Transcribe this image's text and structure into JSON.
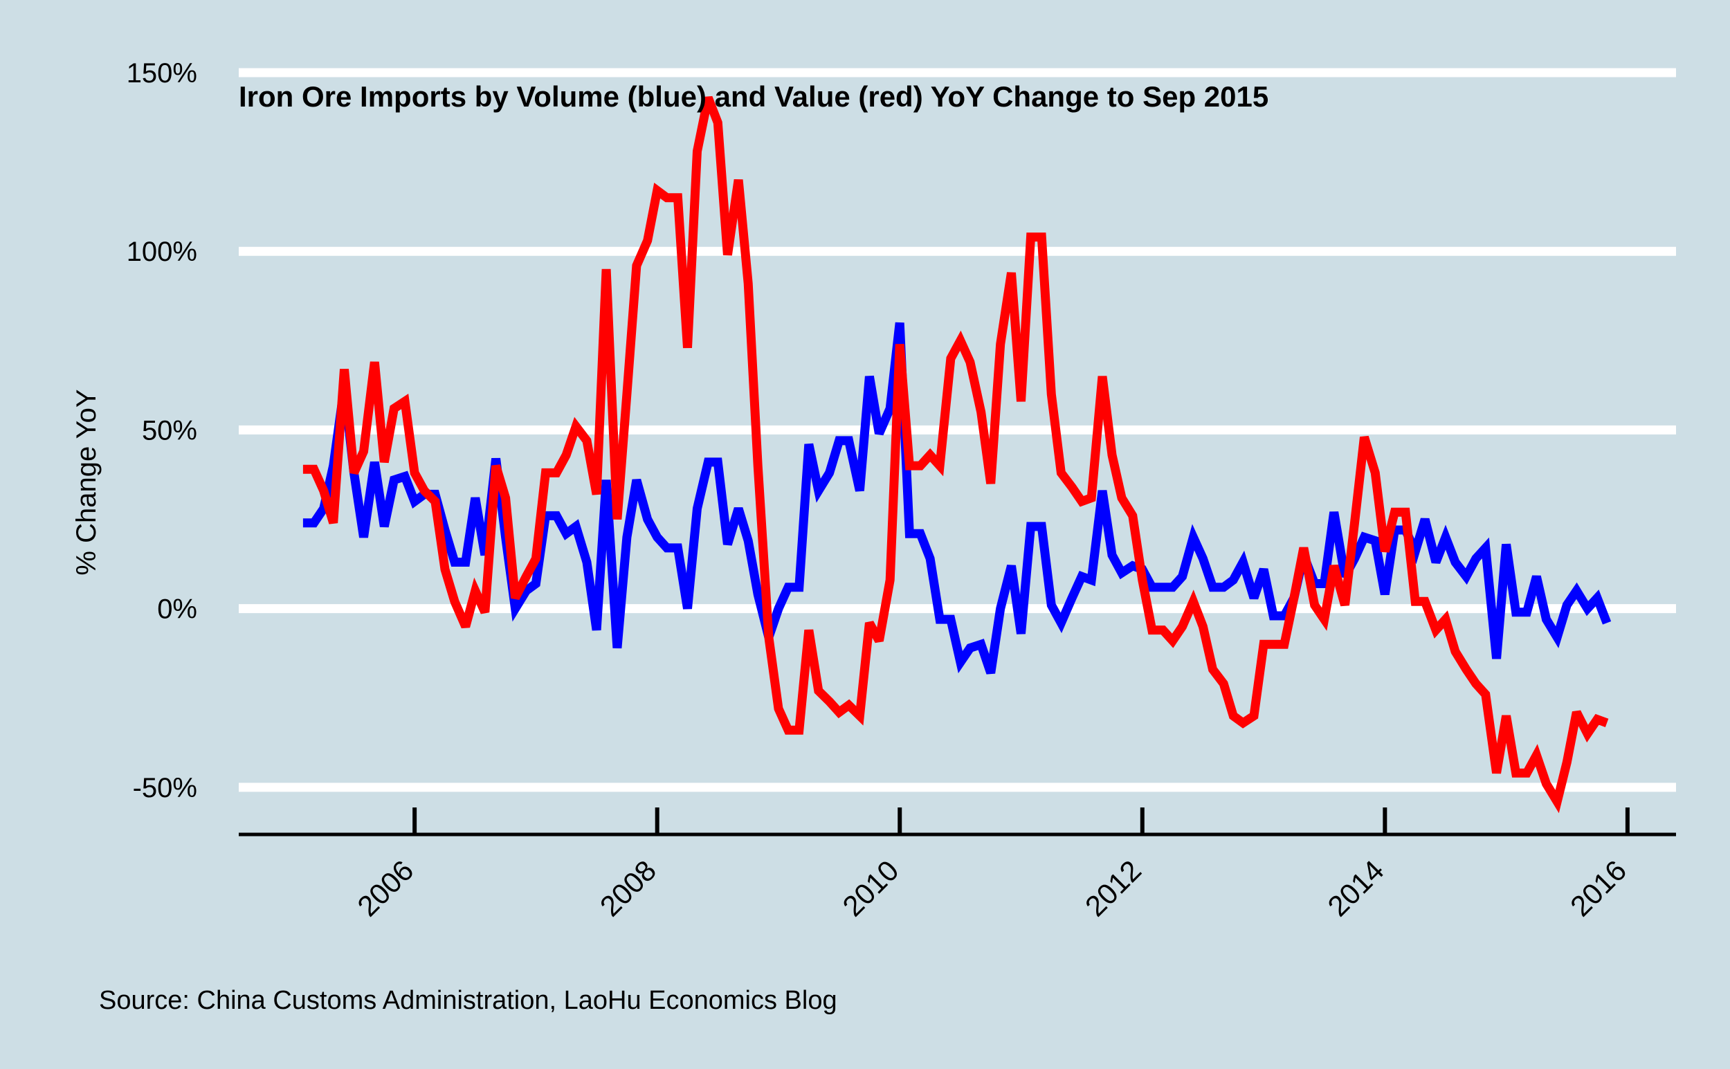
{
  "chart_data": {
    "type": "line",
    "title": "Iron Ore Imports by Volume (blue) and Value (red) YoY Change to Sep 2015",
    "ylabel": "% Change YoY",
    "xlabel": "",
    "caption": "Source: China Customs Administration, LaoHu Economics Blog",
    "ylim": [
      -63,
      150
    ],
    "xlim": [
      2004.55,
      2016.4
    ],
    "y_ticks": [
      -50,
      0,
      50,
      100,
      150
    ],
    "y_tick_labels": [
      "-50%",
      "0%",
      "50%",
      "100%",
      "150%"
    ],
    "x_ticks": [
      2006,
      2008,
      2010,
      2012,
      2014,
      2016
    ],
    "x_tick_labels": [
      "2006",
      "2008",
      "2010",
      "2012",
      "2014",
      "2016"
    ],
    "grid": "horizontal",
    "legend": "none",
    "series": [
      {
        "color": "#0000FF",
        "points": [
          [
            2005.08,
            24
          ],
          [
            2005.17,
            24
          ],
          [
            2005.25,
            28
          ],
          [
            2005.33,
            40
          ],
          [
            2005.42,
            62
          ],
          [
            2005.5,
            38
          ],
          [
            2005.58,
            20
          ],
          [
            2005.67,
            41
          ],
          [
            2005.75,
            23
          ],
          [
            2005.83,
            36
          ],
          [
            2005.92,
            37
          ],
          [
            2006.0,
            30
          ],
          [
            2006.08,
            32
          ],
          [
            2006.17,
            32
          ],
          [
            2006.25,
            22
          ],
          [
            2006.33,
            13
          ],
          [
            2006.42,
            13
          ],
          [
            2006.5,
            31
          ],
          [
            2006.58,
            15
          ],
          [
            2006.67,
            42
          ],
          [
            2006.75,
            20
          ],
          [
            2006.83,
            0
          ],
          [
            2006.92,
            5
          ],
          [
            2007.0,
            7
          ],
          [
            2007.08,
            26
          ],
          [
            2007.17,
            26
          ],
          [
            2007.25,
            21
          ],
          [
            2007.33,
            23
          ],
          [
            2007.42,
            13
          ],
          [
            2007.5,
            -6
          ],
          [
            2007.58,
            36
          ],
          [
            2007.67,
            -11
          ],
          [
            2007.75,
            20
          ],
          [
            2007.83,
            36
          ],
          [
            2007.92,
            25
          ],
          [
            2008.0,
            20
          ],
          [
            2008.08,
            17
          ],
          [
            2008.17,
            17
          ],
          [
            2008.25,
            0
          ],
          [
            2008.33,
            28
          ],
          [
            2008.42,
            41
          ],
          [
            2008.5,
            41
          ],
          [
            2008.58,
            18
          ],
          [
            2008.67,
            28
          ],
          [
            2008.75,
            19
          ],
          [
            2008.83,
            4
          ],
          [
            2008.92,
            -8
          ],
          [
            2009.0,
            0
          ],
          [
            2009.08,
            6
          ],
          [
            2009.17,
            6
          ],
          [
            2009.25,
            46
          ],
          [
            2009.33,
            33
          ],
          [
            2009.42,
            38
          ],
          [
            2009.5,
            47
          ],
          [
            2009.58,
            47
          ],
          [
            2009.67,
            33
          ],
          [
            2009.75,
            65
          ],
          [
            2009.83,
            49
          ],
          [
            2009.92,
            56
          ],
          [
            2010.0,
            80
          ],
          [
            2010.08,
            21
          ],
          [
            2010.17,
            21
          ],
          [
            2010.25,
            14
          ],
          [
            2010.33,
            -3
          ],
          [
            2010.42,
            -3
          ],
          [
            2010.5,
            -15
          ],
          [
            2010.58,
            -11
          ],
          [
            2010.67,
            -10
          ],
          [
            2010.75,
            -18
          ],
          [
            2010.83,
            0
          ],
          [
            2010.92,
            12
          ],
          [
            2011.0,
            -7
          ],
          [
            2011.08,
            23
          ],
          [
            2011.17,
            23
          ],
          [
            2011.25,
            1
          ],
          [
            2011.33,
            -4
          ],
          [
            2011.42,
            3
          ],
          [
            2011.5,
            9
          ],
          [
            2011.58,
            8
          ],
          [
            2011.67,
            33
          ],
          [
            2011.75,
            15
          ],
          [
            2011.83,
            10
          ],
          [
            2011.92,
            12
          ],
          [
            2012.0,
            11
          ],
          [
            2012.08,
            6
          ],
          [
            2012.17,
            6
          ],
          [
            2012.25,
            6
          ],
          [
            2012.33,
            9
          ],
          [
            2012.42,
            20
          ],
          [
            2012.5,
            14
          ],
          [
            2012.58,
            6
          ],
          [
            2012.67,
            6
          ],
          [
            2012.75,
            8
          ],
          [
            2012.83,
            13
          ],
          [
            2012.92,
            3
          ],
          [
            2013.0,
            11
          ],
          [
            2013.08,
            -2
          ],
          [
            2013.17,
            -2
          ],
          [
            2013.25,
            3
          ],
          [
            2013.33,
            15
          ],
          [
            2013.42,
            7
          ],
          [
            2013.5,
            7
          ],
          [
            2013.58,
            27
          ],
          [
            2013.67,
            9
          ],
          [
            2013.75,
            14
          ],
          [
            2013.83,
            20
          ],
          [
            2013.92,
            19
          ],
          [
            2014.0,
            4
          ],
          [
            2014.08,
            22
          ],
          [
            2014.17,
            22
          ],
          [
            2014.25,
            16
          ],
          [
            2014.33,
            25
          ],
          [
            2014.42,
            13
          ],
          [
            2014.5,
            20
          ],
          [
            2014.58,
            13
          ],
          [
            2014.67,
            9
          ],
          [
            2014.75,
            14
          ],
          [
            2014.83,
            17
          ],
          [
            2014.92,
            -14
          ],
          [
            2015.0,
            18
          ],
          [
            2015.08,
            -1
          ],
          [
            2015.17,
            -1
          ],
          [
            2015.25,
            9
          ],
          [
            2015.33,
            -3
          ],
          [
            2015.42,
            -8
          ],
          [
            2015.5,
            1
          ],
          [
            2015.58,
            5
          ],
          [
            2015.67,
            0
          ],
          [
            2015.75,
            3
          ],
          [
            2015.83,
            -4
          ]
        ]
      },
      {
        "color": "#FF0000",
        "points": [
          [
            2005.08,
            39
          ],
          [
            2005.17,
            39
          ],
          [
            2005.25,
            33
          ],
          [
            2005.33,
            24
          ],
          [
            2005.42,
            67
          ],
          [
            2005.5,
            38
          ],
          [
            2005.58,
            44
          ],
          [
            2005.67,
            69
          ],
          [
            2005.75,
            41
          ],
          [
            2005.83,
            56
          ],
          [
            2005.92,
            58
          ],
          [
            2006.0,
            38
          ],
          [
            2006.08,
            33
          ],
          [
            2006.17,
            30
          ],
          [
            2006.25,
            11
          ],
          [
            2006.33,
            2
          ],
          [
            2006.42,
            -5
          ],
          [
            2006.5,
            5
          ],
          [
            2006.58,
            -1
          ],
          [
            2006.67,
            40
          ],
          [
            2006.75,
            31
          ],
          [
            2006.83,
            3
          ],
          [
            2006.92,
            9
          ],
          [
            2007.0,
            14
          ],
          [
            2007.08,
            38
          ],
          [
            2007.17,
            38
          ],
          [
            2007.25,
            43
          ],
          [
            2007.33,
            51
          ],
          [
            2007.42,
            47
          ],
          [
            2007.5,
            32
          ],
          [
            2007.58,
            95
          ],
          [
            2007.67,
            25
          ],
          [
            2007.75,
            60
          ],
          [
            2007.83,
            96
          ],
          [
            2007.92,
            103
          ],
          [
            2008.0,
            117
          ],
          [
            2008.08,
            115
          ],
          [
            2008.17,
            115
          ],
          [
            2008.25,
            73
          ],
          [
            2008.33,
            128
          ],
          [
            2008.42,
            143
          ],
          [
            2008.5,
            136
          ],
          [
            2008.58,
            99
          ],
          [
            2008.67,
            120
          ],
          [
            2008.75,
            91
          ],
          [
            2008.83,
            40
          ],
          [
            2008.92,
            -8
          ],
          [
            2009.0,
            -28
          ],
          [
            2009.08,
            -34
          ],
          [
            2009.17,
            -34
          ],
          [
            2009.25,
            -6
          ],
          [
            2009.33,
            -23
          ],
          [
            2009.42,
            -26
          ],
          [
            2009.5,
            -29
          ],
          [
            2009.58,
            -27
          ],
          [
            2009.67,
            -30
          ],
          [
            2009.75,
            -4
          ],
          [
            2009.83,
            -9
          ],
          [
            2009.92,
            8
          ],
          [
            2010.0,
            74
          ],
          [
            2010.08,
            40
          ],
          [
            2010.17,
            40
          ],
          [
            2010.25,
            43
          ],
          [
            2010.33,
            40
          ],
          [
            2010.42,
            70
          ],
          [
            2010.5,
            75
          ],
          [
            2010.58,
            69
          ],
          [
            2010.67,
            55
          ],
          [
            2010.75,
            35
          ],
          [
            2010.83,
            74
          ],
          [
            2010.92,
            94
          ],
          [
            2011.0,
            58
          ],
          [
            2011.08,
            104
          ],
          [
            2011.17,
            104
          ],
          [
            2011.25,
            60
          ],
          [
            2011.33,
            38
          ],
          [
            2011.42,
            34
          ],
          [
            2011.5,
            30
          ],
          [
            2011.58,
            31
          ],
          [
            2011.67,
            65
          ],
          [
            2011.75,
            43
          ],
          [
            2011.83,
            31
          ],
          [
            2011.92,
            26
          ],
          [
            2012.0,
            8
          ],
          [
            2012.08,
            -6
          ],
          [
            2012.17,
            -6
          ],
          [
            2012.25,
            -9
          ],
          [
            2012.33,
            -5
          ],
          [
            2012.42,
            2
          ],
          [
            2012.5,
            -5
          ],
          [
            2012.58,
            -17
          ],
          [
            2012.67,
            -21
          ],
          [
            2012.75,
            -30
          ],
          [
            2012.83,
            -32
          ],
          [
            2012.92,
            -30
          ],
          [
            2013.0,
            -10
          ],
          [
            2013.08,
            -10
          ],
          [
            2013.17,
            -10
          ],
          [
            2013.25,
            3
          ],
          [
            2013.33,
            17
          ],
          [
            2013.42,
            1
          ],
          [
            2013.5,
            -3
          ],
          [
            2013.58,
            12
          ],
          [
            2013.67,
            1
          ],
          [
            2013.75,
            24
          ],
          [
            2013.83,
            48
          ],
          [
            2013.92,
            38
          ],
          [
            2014.0,
            16
          ],
          [
            2014.08,
            27
          ],
          [
            2014.17,
            27
          ],
          [
            2014.25,
            2
          ],
          [
            2014.33,
            2
          ],
          [
            2014.42,
            -6
          ],
          [
            2014.5,
            -3
          ],
          [
            2014.58,
            -12
          ],
          [
            2014.67,
            -17
          ],
          [
            2014.75,
            -21
          ],
          [
            2014.83,
            -24
          ],
          [
            2014.92,
            -46
          ],
          [
            2015.0,
            -30
          ],
          [
            2015.08,
            -46
          ],
          [
            2015.17,
            -46
          ],
          [
            2015.25,
            -41
          ],
          [
            2015.33,
            -49
          ],
          [
            2015.42,
            -54
          ],
          [
            2015.5,
            -43
          ],
          [
            2015.58,
            -29
          ],
          [
            2015.67,
            -35
          ],
          [
            2015.75,
            -31
          ],
          [
            2015.83,
            -32
          ]
        ]
      }
    ]
  }
}
